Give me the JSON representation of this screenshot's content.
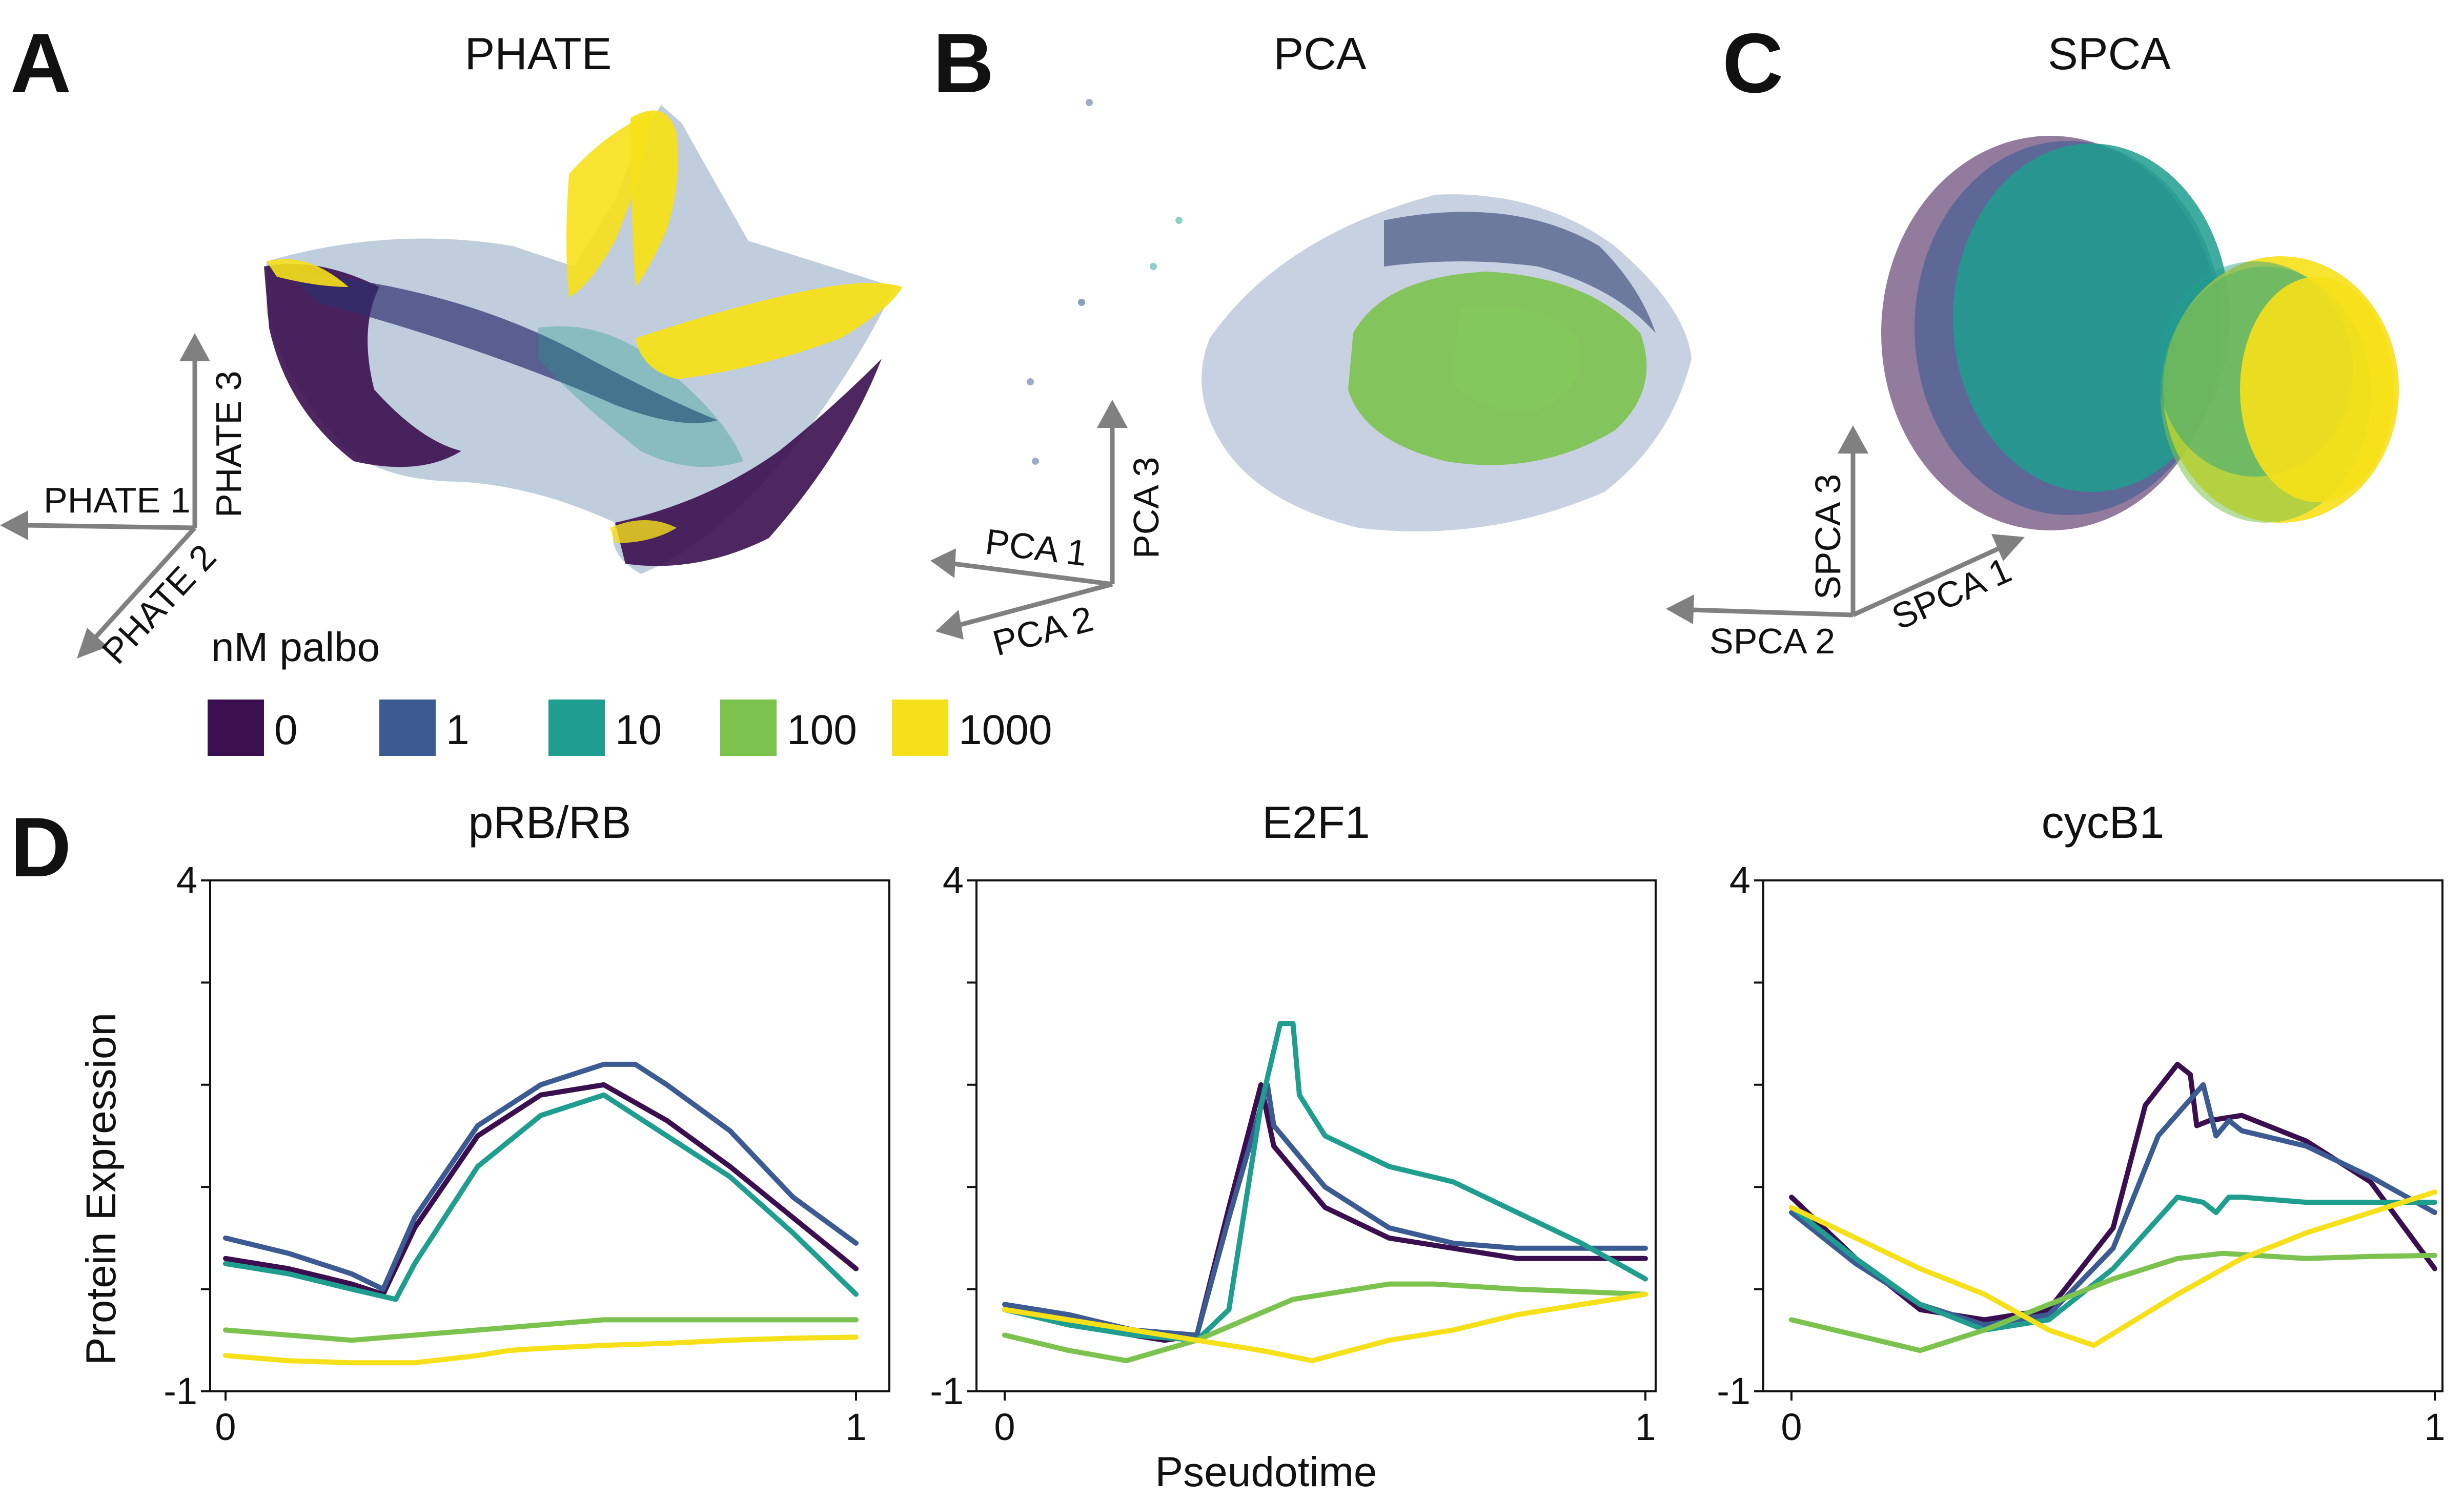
{
  "panels_abc": [
    {
      "letter": "A",
      "title": "PHATE",
      "axes": [
        "PHATE 1",
        "PHATE 2",
        "PHATE 3"
      ]
    },
    {
      "letter": "B",
      "title": "PCA",
      "axes": [
        "PCA 1",
        "PCA 2",
        "PCA 3"
      ]
    },
    {
      "letter": "C",
      "title": "SPCA",
      "axes": [
        "SPCA 1",
        "SPCA 2",
        "SPCA 3"
      ]
    }
  ],
  "legend": {
    "title": "nM palbo",
    "items": [
      {
        "label": "0",
        "color": "#3b0f4f"
      },
      {
        "label": "1",
        "color": "#3b5b92"
      },
      {
        "label": "10",
        "color": "#1f9e8f"
      },
      {
        "label": "100",
        "color": "#7cc24e"
      },
      {
        "label": "1000",
        "color": "#f6e01a"
      }
    ]
  },
  "panel_d": {
    "letter": "D",
    "ylabel": "Protein Expression",
    "xlabel": "Pseudotime"
  },
  "chart_data": [
    {
      "type": "scatter",
      "title": "PHATE",
      "series": [
        {
          "name": "0",
          "color": "#3b0f4f"
        },
        {
          "name": "1",
          "color": "#3b5b92"
        },
        {
          "name": "10",
          "color": "#1f9e8f"
        },
        {
          "name": "100",
          "color": "#7cc24e"
        },
        {
          "name": "1000",
          "color": "#f6e01a"
        }
      ],
      "axis_labels": [
        "PHATE 1",
        "PHATE 2",
        "PHATE 3"
      ]
    },
    {
      "type": "scatter",
      "title": "PCA",
      "axis_labels": [
        "PCA 1",
        "PCA 2",
        "PCA 3"
      ]
    },
    {
      "type": "scatter",
      "title": "SPCA",
      "axis_labels": [
        "SPCA 1",
        "SPCA 2",
        "SPCA 3"
      ]
    },
    {
      "type": "line",
      "title": "pRB/RB",
      "xlim": [
        0,
        1
      ],
      "ylim": [
        -1,
        4
      ],
      "xticks": [
        "0",
        "1"
      ],
      "yticks": [
        "-1",
        "4"
      ],
      "series": [
        {
          "name": "0",
          "color": "#3b0f4f",
          "x": [
            0,
            0.1,
            0.2,
            0.25,
            0.3,
            0.4,
            0.5,
            0.6,
            0.7,
            0.8,
            0.9,
            1.0
          ],
          "y": [
            0.3,
            0.2,
            0.05,
            -0.05,
            0.6,
            1.5,
            1.9,
            2.0,
            1.65,
            1.2,
            0.7,
            0.2
          ]
        },
        {
          "name": "1",
          "color": "#3b5b92",
          "x": [
            0,
            0.1,
            0.2,
            0.25,
            0.3,
            0.4,
            0.5,
            0.6,
            0.65,
            0.7,
            0.8,
            0.9,
            1.0
          ],
          "y": [
            0.5,
            0.35,
            0.15,
            0.0,
            0.7,
            1.6,
            2.0,
            2.2,
            2.2,
            2.0,
            1.55,
            0.9,
            0.45
          ]
        },
        {
          "name": "10",
          "color": "#1f9e8f",
          "x": [
            0,
            0.1,
            0.2,
            0.27,
            0.3,
            0.4,
            0.5,
            0.6,
            0.7,
            0.8,
            0.9,
            1.0
          ],
          "y": [
            0.25,
            0.15,
            0.0,
            -0.1,
            0.25,
            1.2,
            1.7,
            1.9,
            1.5,
            1.1,
            0.55,
            -0.05
          ]
        },
        {
          "name": "100",
          "color": "#7cc24e",
          "x": [
            0,
            0.1,
            0.2,
            0.3,
            0.4,
            0.5,
            0.6,
            0.7,
            0.8,
            0.9,
            1.0
          ],
          "y": [
            -0.4,
            -0.45,
            -0.5,
            -0.45,
            -0.4,
            -0.35,
            -0.3,
            -0.3,
            -0.3,
            -0.3,
            -0.3
          ]
        },
        {
          "name": "1000",
          "color": "#f6e01a",
          "x": [
            0,
            0.1,
            0.2,
            0.3,
            0.4,
            0.45,
            0.5,
            0.6,
            0.7,
            0.8,
            0.9,
            1.0
          ],
          "y": [
            -0.65,
            -0.7,
            -0.72,
            -0.72,
            -0.65,
            -0.6,
            -0.58,
            -0.55,
            -0.53,
            -0.5,
            -0.48,
            -0.47
          ]
        }
      ]
    },
    {
      "type": "line",
      "title": "E2F1",
      "xlim": [
        0,
        1
      ],
      "ylim": [
        -1,
        4
      ],
      "xticks": [
        "0",
        "1"
      ],
      "yticks": [
        "-1",
        "4"
      ],
      "series": [
        {
          "name": "0",
          "color": "#3b0f4f",
          "x": [
            0,
            0.1,
            0.2,
            0.25,
            0.3,
            0.35,
            0.4,
            0.41,
            0.42,
            0.5,
            0.6,
            0.7,
            0.8,
            0.9,
            1.0
          ],
          "y": [
            -0.2,
            -0.3,
            -0.45,
            -0.5,
            -0.45,
            0.8,
            2.0,
            1.7,
            1.4,
            0.8,
            0.5,
            0.4,
            0.3,
            0.3,
            0.3
          ]
        },
        {
          "name": "1",
          "color": "#3b5b92",
          "x": [
            0,
            0.1,
            0.2,
            0.3,
            0.35,
            0.41,
            0.42,
            0.5,
            0.6,
            0.7,
            0.8,
            0.9,
            1.0
          ],
          "y": [
            -0.15,
            -0.25,
            -0.4,
            -0.45,
            0.7,
            2.0,
            1.6,
            1.0,
            0.6,
            0.45,
            0.4,
            0.4,
            0.4
          ]
        },
        {
          "name": "10",
          "color": "#1f9e8f",
          "x": [
            0,
            0.1,
            0.2,
            0.3,
            0.35,
            0.4,
            0.43,
            0.45,
            0.46,
            0.5,
            0.6,
            0.7,
            0.8,
            0.9,
            1.0
          ],
          "y": [
            -0.2,
            -0.35,
            -0.45,
            -0.5,
            -0.2,
            1.8,
            2.6,
            2.6,
            1.9,
            1.5,
            1.2,
            1.05,
            0.75,
            0.45,
            0.1
          ]
        },
        {
          "name": "100",
          "color": "#7cc24e",
          "x": [
            0,
            0.1,
            0.19,
            0.3,
            0.45,
            0.6,
            0.67,
            0.8,
            1.0
          ],
          "y": [
            -0.45,
            -0.6,
            -0.7,
            -0.5,
            -0.1,
            0.05,
            0.05,
            0.0,
            -0.05
          ]
        },
        {
          "name": "1000",
          "color": "#f6e01a",
          "x": [
            0,
            0.1,
            0.2,
            0.3,
            0.4,
            0.48,
            0.6,
            0.7,
            0.8,
            0.9,
            1.0
          ],
          "y": [
            -0.2,
            -0.3,
            -0.4,
            -0.5,
            -0.6,
            -0.7,
            -0.5,
            -0.4,
            -0.25,
            -0.15,
            -0.05
          ]
        }
      ]
    },
    {
      "type": "line",
      "title": "cycB1",
      "xlim": [
        0,
        1
      ],
      "ylim": [
        -1,
        4
      ],
      "xticks": [
        "0",
        "1"
      ],
      "yticks": [
        "-1",
        "4"
      ],
      "series": [
        {
          "name": "0",
          "color": "#3b0f4f",
          "x": [
            0,
            0.1,
            0.2,
            0.3,
            0.4,
            0.5,
            0.55,
            0.6,
            0.62,
            0.63,
            0.65,
            0.7,
            0.8,
            0.9,
            1.0
          ],
          "y": [
            0.9,
            0.3,
            -0.2,
            -0.3,
            -0.2,
            0.6,
            1.8,
            2.2,
            2.1,
            1.6,
            1.65,
            1.7,
            1.45,
            1.05,
            0.2
          ]
        },
        {
          "name": "1",
          "color": "#3b5b92",
          "x": [
            0,
            0.1,
            0.2,
            0.3,
            0.4,
            0.5,
            0.57,
            0.64,
            0.66,
            0.68,
            0.7,
            0.8,
            0.9,
            1.0
          ],
          "y": [
            0.75,
            0.25,
            -0.15,
            -0.35,
            -0.25,
            0.4,
            1.5,
            2.0,
            1.5,
            1.65,
            1.55,
            1.4,
            1.1,
            0.75
          ]
        },
        {
          "name": "10",
          "color": "#1f9e8f",
          "x": [
            0,
            0.1,
            0.2,
            0.3,
            0.4,
            0.5,
            0.6,
            0.64,
            0.66,
            0.68,
            0.7,
            0.8,
            0.9,
            1.0
          ],
          "y": [
            0.8,
            0.3,
            -0.15,
            -0.4,
            -0.3,
            0.2,
            0.9,
            0.85,
            0.75,
            0.9,
            0.9,
            0.85,
            0.85,
            0.85
          ]
        },
        {
          "name": "100",
          "color": "#7cc24e",
          "x": [
            0,
            0.1,
            0.2,
            0.3,
            0.4,
            0.5,
            0.6,
            0.67,
            0.8,
            0.9,
            1.0
          ],
          "y": [
            -0.3,
            -0.45,
            -0.6,
            -0.4,
            -0.15,
            0.1,
            0.3,
            0.35,
            0.3,
            0.32,
            0.33
          ]
        },
        {
          "name": "1000",
          "color": "#f6e01a",
          "x": [
            0,
            0.1,
            0.2,
            0.3,
            0.4,
            0.47,
            0.6,
            0.7,
            0.8,
            0.9,
            1.0
          ],
          "y": [
            0.8,
            0.5,
            0.2,
            -0.05,
            -0.4,
            -0.55,
            -0.05,
            0.3,
            0.55,
            0.75,
            0.95
          ]
        }
      ]
    }
  ]
}
